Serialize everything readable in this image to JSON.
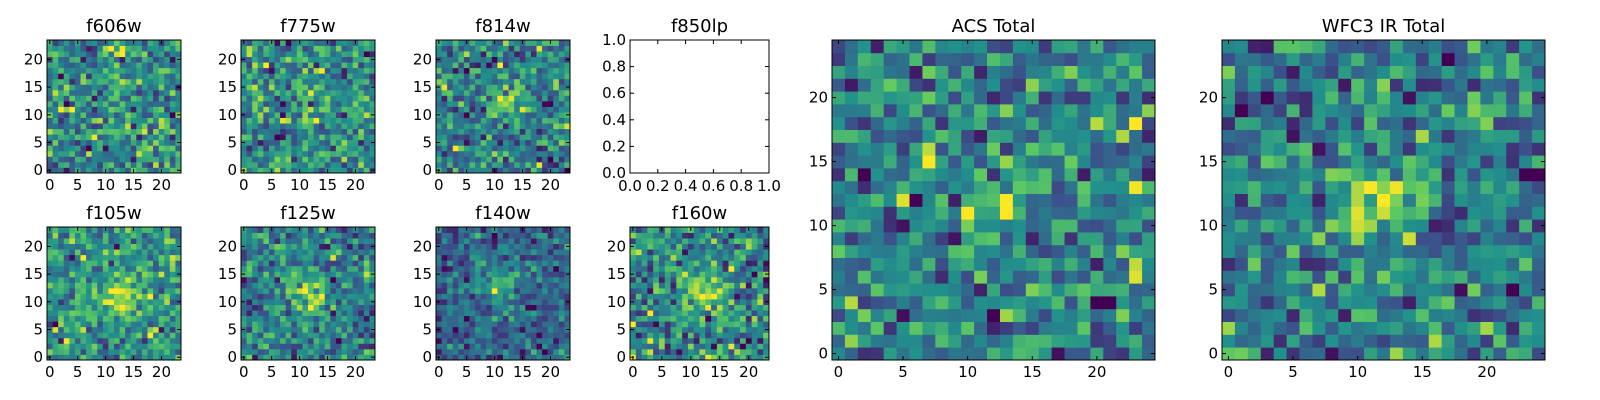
{
  "figure": {
    "background": "#ffffff",
    "colormap": "viridis",
    "colormap_stops": [
      "#440154",
      "#3b528b",
      "#21918c",
      "#5ec962",
      "#fde725"
    ]
  },
  "chart_data": [
    {
      "type": "heatmap",
      "title": "f606w",
      "grid_size": 24,
      "xticks": [
        0,
        5,
        10,
        15,
        20
      ],
      "yticks": [
        0,
        5,
        10,
        15,
        20
      ],
      "tick_labels_x": [
        "0",
        "5",
        "10",
        "15",
        "20"
      ],
      "tick_labels_y": [
        "0",
        "5",
        "10",
        "15",
        "20"
      ],
      "description": "noise field",
      "seed": 11,
      "bump": {
        "cx": 12,
        "cy": 12,
        "sigma": 3,
        "amp": 0.05
      }
    },
    {
      "type": "heatmap",
      "title": "f775w",
      "grid_size": 24,
      "xticks": [
        0,
        5,
        10,
        15,
        20
      ],
      "yticks": [
        0,
        5,
        10,
        15,
        20
      ],
      "tick_labels_x": [
        "0",
        "5",
        "10",
        "15",
        "20"
      ],
      "tick_labels_y": [
        "0",
        "5",
        "10",
        "15",
        "20"
      ],
      "description": "noise field",
      "seed": 23,
      "bump": {
        "cx": 12,
        "cy": 12,
        "sigma": 3,
        "amp": 0.05
      }
    },
    {
      "type": "heatmap",
      "title": "f814w",
      "grid_size": 24,
      "xticks": [
        0,
        5,
        10,
        15,
        20
      ],
      "yticks": [
        0,
        5,
        10,
        15,
        20
      ],
      "tick_labels_x": [
        "0",
        "5",
        "10",
        "15",
        "20"
      ],
      "tick_labels_y": [
        "0",
        "5",
        "10",
        "15",
        "20"
      ],
      "description": "noise field with central source",
      "seed": 37,
      "bump": {
        "cx": 12,
        "cy": 13,
        "sigma": 2.5,
        "amp": 0.25
      }
    },
    {
      "type": "empty",
      "title": "f850lp",
      "xlim": [
        0.0,
        1.0
      ],
      "ylim": [
        0.0,
        1.0
      ],
      "tick_labels_x": [
        "0.0",
        "0.2",
        "0.4",
        "0.6",
        "0.8",
        "1.0"
      ],
      "tick_labels_y": [
        "0.0",
        "0.2",
        "0.4",
        "0.6",
        "0.8",
        "1.0"
      ]
    },
    {
      "type": "heatmap",
      "title": "f105w",
      "grid_size": 24,
      "xticks": [
        0,
        5,
        10,
        15,
        20
      ],
      "yticks": [
        0,
        5,
        10,
        15,
        20
      ],
      "tick_labels_x": [
        "0",
        "5",
        "10",
        "15",
        "20"
      ],
      "tick_labels_y": [
        "0",
        "5",
        "10",
        "15",
        "20"
      ],
      "description": "noise field with central source",
      "seed": 41,
      "bump": {
        "cx": 13,
        "cy": 11,
        "sigma": 3,
        "amp": 0.35
      }
    },
    {
      "type": "heatmap",
      "title": "f125w",
      "grid_size": 24,
      "xticks": [
        0,
        5,
        10,
        15,
        20
      ],
      "yticks": [
        0,
        5,
        10,
        15,
        20
      ],
      "tick_labels_x": [
        "0",
        "5",
        "10",
        "15",
        "20"
      ],
      "tick_labels_y": [
        "0",
        "5",
        "10",
        "15",
        "20"
      ],
      "description": "noise field with central source",
      "seed": 53,
      "bump": {
        "cx": 12,
        "cy": 11,
        "sigma": 3,
        "amp": 0.35
      }
    },
    {
      "type": "heatmap",
      "title": "f140w",
      "grid_size": 24,
      "xticks": [
        0,
        5,
        10,
        15,
        20
      ],
      "yticks": [
        0,
        5,
        10,
        15,
        20
      ],
      "tick_labels_x": [
        "0",
        "5",
        "10",
        "15",
        "20"
      ],
      "tick_labels_y": [
        "0",
        "5",
        "10",
        "15",
        "20"
      ],
      "description": "noise field with central source",
      "seed": 67,
      "bump": {
        "cx": 11,
        "cy": 13,
        "sigma": 3,
        "amp": 0.35
      }
    },
    {
      "type": "heatmap",
      "title": "f160w",
      "grid_size": 24,
      "xticks": [
        0,
        5,
        10,
        15,
        20
      ],
      "yticks": [
        0,
        5,
        10,
        15,
        20
      ],
      "tick_labels_x": [
        "0",
        "5",
        "10",
        "15",
        "20"
      ],
      "tick_labels_y": [
        "0",
        "5",
        "10",
        "15",
        "20"
      ],
      "description": "noise field with central source",
      "seed": 79,
      "bump": {
        "cx": 12,
        "cy": 11,
        "sigma": 2.5,
        "amp": 0.35
      }
    },
    {
      "type": "heatmap",
      "title": "ACS Total",
      "grid_size": 25,
      "xticks": [
        0,
        5,
        10,
        15,
        20
      ],
      "yticks": [
        0,
        5,
        10,
        15,
        20
      ],
      "tick_labels_x": [
        "0",
        "5",
        "10",
        "15",
        "20"
      ],
      "tick_labels_y": [
        "0",
        "5",
        "10",
        "15",
        "20"
      ],
      "description": "coarse noise field with central source",
      "seed": 97,
      "bump": {
        "cx": 12,
        "cy": 12,
        "sigma": 2,
        "amp": 0.3
      }
    },
    {
      "type": "heatmap",
      "title": "WFC3 IR Total",
      "grid_size": 25,
      "xticks": [
        0,
        5,
        10,
        15,
        20
      ],
      "yticks": [
        0,
        5,
        10,
        15,
        20
      ],
      "tick_labels_x": [
        "0",
        "5",
        "10",
        "15",
        "20"
      ],
      "tick_labels_y": [
        "0",
        "5",
        "10",
        "15",
        "20"
      ],
      "description": "smooth noise field with bright central source",
      "seed": 131,
      "bump": {
        "cx": 12,
        "cy": 12,
        "sigma": 1.8,
        "amp": 0.55
      }
    }
  ]
}
